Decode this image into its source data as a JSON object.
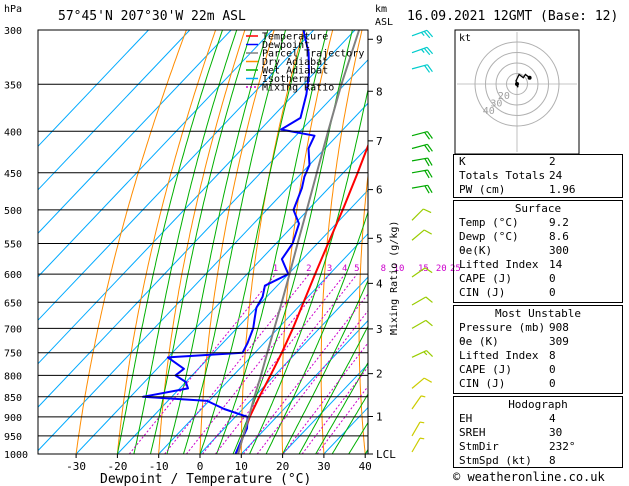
{
  "header": {
    "location": "57°45'N 207°30'W 22m ASL",
    "datetime": "16.09.2021 12GMT (Base: 12)",
    "pressure_unit": "hPa",
    "height_unit_top": "km",
    "height_unit_bottom": "ASL"
  },
  "colors": {
    "temperature": "#ff0000",
    "dewpoint": "#0000ff",
    "parcel": "#808080",
    "dry_adiabat": "#ff8c00",
    "wet_adiabat": "#00b000",
    "isotherm": "#00aaff",
    "mixing_ratio": "#cc00cc"
  },
  "legend": [
    "Temperature",
    "Dewpoint",
    "Parcel Trajectory",
    "Dry Adiabat",
    "Wet Adiabat",
    "Isotherm",
    "Mixing Ratio"
  ],
  "chart_data": {
    "type": "line",
    "xlabel": "Dewpoint / Temperature (°C)",
    "ylabel": "hPa",
    "xlim": [
      -35,
      40
    ],
    "ylim": [
      1000,
      300
    ],
    "x_ticks": [
      -30,
      -20,
      -10,
      0,
      10,
      20,
      30,
      40
    ],
    "pressure_levels": [
      300,
      350,
      400,
      450,
      500,
      550,
      600,
      650,
      700,
      750,
      800,
      850,
      900,
      950,
      1000
    ],
    "km_ticks": [
      {
        "label": "9",
        "p": 308
      },
      {
        "label": "8",
        "p": 357
      },
      {
        "label": "7",
        "p": 411
      },
      {
        "label": "6",
        "p": 472
      },
      {
        "label": "5",
        "p": 542
      },
      {
        "label": "4",
        "p": 616
      },
      {
        "label": "3",
        "p": 701
      },
      {
        "label": "2",
        "p": 796
      },
      {
        "label": "1",
        "p": 899
      },
      {
        "label": "LCL",
        "p": 1003
      }
    ],
    "mixing_ratio_label": "Mixing Ratio (g/kg)",
    "mixing_ratio_values": [
      "1",
      "2",
      "3",
      "4",
      "5",
      "8",
      "10",
      "15",
      "20",
      "25"
    ],
    "series": [
      {
        "name": "Temperature",
        "points": [
          [
            1000,
            9.2
          ],
          [
            950,
            6.3
          ],
          [
            900,
            3.5
          ],
          [
            850,
            1.2
          ],
          [
            800,
            -1.0
          ],
          [
            750,
            -3.5
          ],
          [
            700,
            -6.4
          ],
          [
            650,
            -9.8
          ],
          [
            600,
            -13.5
          ],
          [
            550,
            -17.4
          ],
          [
            500,
            -21.6
          ],
          [
            450,
            -26.5
          ],
          [
            400,
            -32.2
          ],
          [
            350,
            -38.8
          ],
          [
            300,
            -46.5
          ]
        ]
      },
      {
        "name": "Dewpoint",
        "points": [
          [
            1000,
            8.6
          ],
          [
            960,
            6.8
          ],
          [
            930,
            5.5
          ],
          [
            900,
            3.0
          ],
          [
            880,
            -4.5
          ],
          [
            860,
            -10.5
          ],
          [
            850,
            -27.0
          ],
          [
            830,
            -18.0
          ],
          [
            815,
            -20.0
          ],
          [
            800,
            -24.0
          ],
          [
            785,
            -23.5
          ],
          [
            760,
            -30.0
          ],
          [
            750,
            -13.0
          ],
          [
            730,
            -14.0
          ],
          [
            700,
            -16.0
          ],
          [
            680,
            -18.0
          ],
          [
            660,
            -20.0
          ],
          [
            640,
            -21.0
          ],
          [
            620,
            -23.0
          ],
          [
            600,
            -20.0
          ],
          [
            575,
            -25.0
          ],
          [
            550,
            -26.0
          ],
          [
            520,
            -29.0
          ],
          [
            500,
            -33.5
          ],
          [
            470,
            -36.5
          ],
          [
            455,
            -38.5
          ],
          [
            440,
            -40.0
          ],
          [
            420,
            -44.0
          ],
          [
            405,
            -45.5
          ],
          [
            398,
            -55.0
          ],
          [
            385,
            -53.0
          ],
          [
            360,
            -57.0
          ],
          [
            340,
            -61.0
          ],
          [
            320,
            -66.0
          ],
          [
            300,
            -72.5
          ]
        ]
      },
      {
        "name": "Parcel Trajectory",
        "points": [
          [
            1000,
            9.2
          ],
          [
            950,
            6.3
          ],
          [
            900,
            3.3
          ],
          [
            850,
            0.0
          ],
          [
            800,
            -3.3
          ],
          [
            750,
            -7.0
          ],
          [
            700,
            -10.9
          ],
          [
            650,
            -15.1
          ],
          [
            600,
            -19.7
          ],
          [
            550,
            -24.8
          ],
          [
            500,
            -30.3
          ],
          [
            450,
            -36.4
          ],
          [
            400,
            -43.2
          ],
          [
            350,
            -50.8
          ],
          [
            300,
            -59.0
          ]
        ]
      }
    ],
    "wind_barbs": [
      {
        "p": 305,
        "dir": 250,
        "spd": 25
      },
      {
        "p": 320,
        "dir": 250,
        "spd": 25
      },
      {
        "p": 335,
        "dir": 255,
        "spd": 20
      },
      {
        "p": 405,
        "dir": 255,
        "spd": 20
      },
      {
        "p": 420,
        "dir": 255,
        "spd": 20
      },
      {
        "p": 435,
        "dir": 260,
        "spd": 20
      },
      {
        "p": 450,
        "dir": 260,
        "spd": 20
      },
      {
        "p": 470,
        "dir": 260,
        "spd": 20
      },
      {
        "p": 515,
        "dir": 225,
        "spd": 10
      },
      {
        "p": 545,
        "dir": 230,
        "spd": 10
      },
      {
        "p": 605,
        "dir": 235,
        "spd": 10
      },
      {
        "p": 655,
        "dir": 240,
        "spd": 10
      },
      {
        "p": 700,
        "dir": 240,
        "spd": 10
      },
      {
        "p": 760,
        "dir": 245,
        "spd": 15
      },
      {
        "p": 830,
        "dir": 230,
        "spd": 10
      },
      {
        "p": 880,
        "dir": 215,
        "spd": 5
      },
      {
        "p": 950,
        "dir": 210,
        "spd": 5
      },
      {
        "p": 1000,
        "dir": 210,
        "spd": 5
      }
    ],
    "hodograph": {
      "label": "kt",
      "ring_labels": [
        "40",
        "30",
        "20"
      ],
      "trace_kt": [
        [
          0,
          -2
        ],
        [
          1,
          -3
        ],
        [
          -1,
          3
        ],
        [
          2,
          9
        ],
        [
          6,
          6
        ],
        [
          8,
          9
        ],
        [
          12,
          6
        ]
      ]
    }
  },
  "indices": {
    "k_label": "K",
    "k": "2",
    "tt_label": "Totals Totals",
    "tt": "24",
    "pw_label": "PW (cm)",
    "pw": "1.96"
  },
  "surface": {
    "title": "Surface",
    "temp_label": "Temp (°C)",
    "temp": "9.2",
    "dewp_label": "Dewp (°C)",
    "dewp": "8.6",
    "theta_label": "θe(K)",
    "theta": "300",
    "li_label": "Lifted Index",
    "li": "14",
    "cape_label": "CAPE (J)",
    "cape": "0",
    "cin_label": "CIN (J)",
    "cin": "0"
  },
  "most_unstable": {
    "title": "Most Unstable",
    "pressure_label": "Pressure (mb)",
    "pressure": "908",
    "theta_label": "θe (K)",
    "theta": "309",
    "li_label": "Lifted Index",
    "li": "8",
    "cape_label": "CAPE (J)",
    "cape": "0",
    "cin_label": "CIN (J)",
    "cin": "0"
  },
  "hodograph_box": {
    "title": "Hodograph",
    "eh_label": "EH",
    "eh": "4",
    "sreh_label": "SREH",
    "sreh": "30",
    "stmdir_label": "StmDir",
    "stmdir": "232°",
    "stmspd_label": "StmSpd (kt)",
    "stmspd": "8"
  },
  "copyright": "© weatheronline.co.uk"
}
